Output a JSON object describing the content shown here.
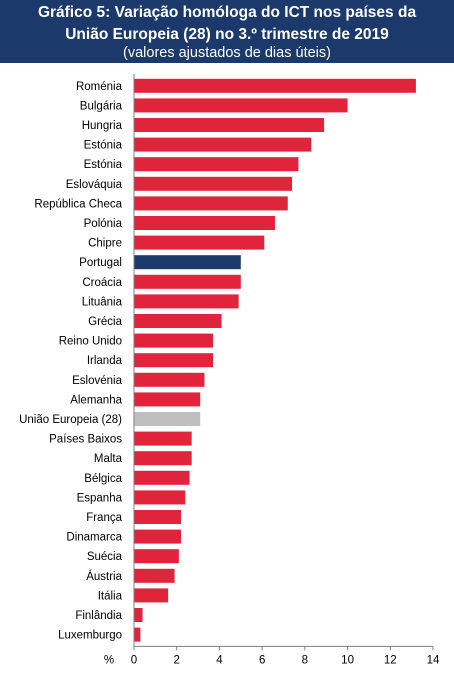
{
  "header": {
    "title_line1": "Gráfico 5: Variação homóloga do ICT nos países da",
    "title_line2": "União Europeia (28) no 3.º trimestre de 2019",
    "subtitle": "(valores ajustados de dias úteis)"
  },
  "colors": {
    "header_bg": "#1b3a6b",
    "default_bar": "#e0243b",
    "portugal_bar": "#1b3a6b",
    "eu_bar": "#bfbfbf"
  },
  "chart_data": {
    "type": "bar",
    "orientation": "horizontal",
    "x_unit_label": "%",
    "xlim": [
      0,
      14
    ],
    "xticks": [
      0,
      2,
      4,
      6,
      8,
      10,
      12,
      14
    ],
    "grid": false,
    "categories": [
      "Roménia",
      "Bulgária",
      "Hungria",
      "Estónia",
      "Estónia",
      "Eslováquia",
      "República Checa",
      "Polónia",
      "Chipre",
      "Portugal",
      "Croácia",
      "Lituânia",
      "Grécia",
      "Reino Unido",
      "Irlanda",
      "Eslovénia",
      "Alemanha",
      "União Europeia (28)",
      "Países Baixos",
      "Malta",
      "Bélgica",
      "Espanha",
      "França",
      "Dinamarca",
      "Suécia",
      "Áustria",
      "Itália",
      "Finlândia",
      "Luxemburgo"
    ],
    "values": [
      13.2,
      10.0,
      8.9,
      8.3,
      7.7,
      7.4,
      7.2,
      6.6,
      6.1,
      5.0,
      5.0,
      4.9,
      4.1,
      3.7,
      3.7,
      3.3,
      3.1,
      3.1,
      2.7,
      2.7,
      2.6,
      2.4,
      2.2,
      2.2,
      2.1,
      1.9,
      1.6,
      0.4,
      0.3
    ],
    "highlight": {
      "Portugal": "portugal_bar",
      "União Europeia (28)": "eu_bar"
    }
  }
}
